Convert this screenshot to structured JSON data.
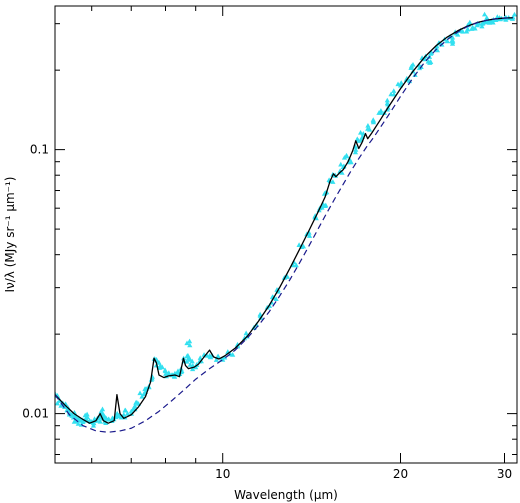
{
  "chart_data": {
    "type": "scatter",
    "title": "",
    "xlabel": "Wavelength (μm)",
    "ylabel": "Iν/λ (MJy sr⁻¹ μm⁻¹)",
    "x_scale": "log",
    "y_scale": "log",
    "xlim": [
      5.2,
      31.5
    ],
    "ylim": [
      0.0065,
      0.35
    ],
    "x_ticks": [
      10,
      20,
      30
    ],
    "y_ticks": [
      0.01,
      0.1
    ],
    "grid": false,
    "legend": "none",
    "colors": {
      "data_points": "#33e0f0",
      "model_curve": "#000000",
      "continuum_curve": "#1a1a8c"
    },
    "series": [
      {
        "kind": "scatter",
        "style": "cyan-triangles",
        "points": [
          [
            5.25,
            0.0117
          ],
          [
            5.3,
            0.0112
          ],
          [
            5.35,
            0.0109
          ],
          [
            5.4,
            0.0106
          ],
          [
            5.45,
            0.0103
          ],
          [
            5.5,
            0.0101
          ],
          [
            5.55,
            0.0099
          ],
          [
            5.6,
            0.0097
          ],
          [
            5.65,
            0.0096
          ],
          [
            5.7,
            0.0095
          ],
          [
            5.75,
            0.0094
          ],
          [
            5.8,
            0.0093
          ],
          [
            5.85,
            0.0095
          ],
          [
            5.9,
            0.0097
          ],
          [
            5.95,
            0.0094
          ],
          [
            6.0,
            0.0093
          ],
          [
            6.05,
            0.0092
          ],
          [
            6.1,
            0.0094
          ],
          [
            6.15,
            0.0096
          ],
          [
            6.2,
            0.0098
          ],
          [
            6.25,
            0.0101
          ],
          [
            6.3,
            0.0098
          ],
          [
            6.35,
            0.0096
          ],
          [
            6.4,
            0.0095
          ],
          [
            6.5,
            0.0096
          ],
          [
            6.6,
            0.0097
          ],
          [
            6.7,
            0.0098
          ],
          [
            6.8,
            0.0099
          ],
          [
            6.9,
            0.01
          ],
          [
            7.0,
            0.0102
          ],
          [
            7.1,
            0.0104
          ],
          [
            7.2,
            0.0109
          ],
          [
            7.3,
            0.0116
          ],
          [
            7.4,
            0.0121
          ],
          [
            7.5,
            0.0126
          ],
          [
            7.6,
            0.0138
          ],
          [
            7.7,
            0.016
          ],
          [
            7.8,
            0.0156
          ],
          [
            7.9,
            0.015
          ],
          [
            8.0,
            0.0145
          ],
          [
            8.1,
            0.0142
          ],
          [
            8.2,
            0.014
          ],
          [
            8.3,
            0.0142
          ],
          [
            8.4,
            0.0145
          ],
          [
            8.5,
            0.0148
          ],
          [
            8.6,
            0.0158
          ],
          [
            8.7,
            0.0165
          ],
          [
            8.8,
            0.016
          ],
          [
            8.9,
            0.0152
          ],
          [
            9.0,
            0.015
          ],
          [
            9.2,
            0.0158
          ],
          [
            9.4,
            0.0166
          ],
          [
            9.6,
            0.0166
          ],
          [
            9.8,
            0.0164
          ],
          [
            10.0,
            0.016
          ],
          [
            10.3,
            0.0168
          ],
          [
            10.6,
            0.018
          ],
          [
            11.0,
            0.0196
          ],
          [
            11.3,
            0.0212
          ],
          [
            11.6,
            0.0231
          ],
          [
            12.0,
            0.0256
          ],
          [
            12.4,
            0.029
          ],
          [
            12.8,
            0.033
          ],
          [
            13.2,
            0.0375
          ],
          [
            13.6,
            0.0428
          ],
          [
            14.0,
            0.0485
          ],
          [
            14.4,
            0.055
          ],
          [
            14.8,
            0.062
          ],
          [
            15.0,
            0.069
          ],
          [
            15.2,
            0.076
          ],
          [
            15.5,
            0.08
          ],
          [
            15.8,
            0.083
          ],
          [
            16.0,
            0.086
          ],
          [
            16.4,
            0.092
          ],
          [
            16.8,
            0.1
          ],
          [
            17.0,
            0.108
          ],
          [
            17.3,
            0.115
          ],
          [
            17.6,
            0.12
          ],
          [
            18.0,
            0.127
          ],
          [
            18.5,
            0.138
          ],
          [
            19.0,
            0.15
          ],
          [
            19.5,
            0.162
          ],
          [
            20.0,
            0.175
          ],
          [
            20.5,
            0.186
          ],
          [
            21.0,
            0.198
          ],
          [
            21.5,
            0.209
          ],
          [
            22.0,
            0.22
          ],
          [
            22.5,
            0.231
          ],
          [
            23.0,
            0.241
          ],
          [
            23.5,
            0.25
          ],
          [
            24.0,
            0.258
          ],
          [
            24.5,
            0.266
          ],
          [
            25.0,
            0.273
          ],
          [
            25.5,
            0.28
          ],
          [
            26.0,
            0.286
          ],
          [
            26.5,
            0.291
          ],
          [
            27.0,
            0.296
          ],
          [
            27.5,
            0.3
          ],
          [
            28.0,
            0.304
          ],
          [
            28.5,
            0.307
          ],
          [
            29.0,
            0.31
          ],
          [
            29.5,
            0.312
          ],
          [
            30.0,
            0.314
          ],
          [
            30.5,
            0.316
          ],
          [
            31.0,
            0.317
          ],
          [
            8.7,
            0.0185
          ],
          [
            12.2,
            0.0275
          ],
          [
            14.6,
            0.06
          ],
          [
            16.2,
            0.095
          ],
          [
            22.5,
            0.215
          ],
          [
            24.5,
            0.252
          ],
          [
            19.0,
            0.142
          ],
          [
            21.0,
            0.21
          ],
          [
            26.0,
            0.296
          ],
          [
            28.0,
            0.316
          ]
        ]
      },
      {
        "kind": "line",
        "style": "solid-black",
        "points": [
          [
            5.2,
            0.0118
          ],
          [
            5.4,
            0.0108
          ],
          [
            5.6,
            0.01
          ],
          [
            5.8,
            0.0095
          ],
          [
            5.95,
            0.0092
          ],
          [
            6.1,
            0.0094
          ],
          [
            6.2,
            0.01
          ],
          [
            6.28,
            0.0094
          ],
          [
            6.4,
            0.0092
          ],
          [
            6.55,
            0.0094
          ],
          [
            6.62,
            0.0118
          ],
          [
            6.7,
            0.01
          ],
          [
            6.8,
            0.0096
          ],
          [
            7.0,
            0.0099
          ],
          [
            7.2,
            0.0106
          ],
          [
            7.4,
            0.0116
          ],
          [
            7.55,
            0.0132
          ],
          [
            7.65,
            0.0162
          ],
          [
            7.72,
            0.0156
          ],
          [
            7.8,
            0.014
          ],
          [
            7.95,
            0.0137
          ],
          [
            8.1,
            0.0139
          ],
          [
            8.3,
            0.014
          ],
          [
            8.45,
            0.0138
          ],
          [
            8.58,
            0.0162
          ],
          [
            8.65,
            0.0152
          ],
          [
            8.75,
            0.0148
          ],
          [
            8.95,
            0.015
          ],
          [
            9.1,
            0.0154
          ],
          [
            9.3,
            0.0164
          ],
          [
            9.5,
            0.0174
          ],
          [
            9.65,
            0.0164
          ],
          [
            9.85,
            0.0161
          ],
          [
            10.1,
            0.0166
          ],
          [
            10.5,
            0.0177
          ],
          [
            11.0,
            0.0196
          ],
          [
            11.5,
            0.0224
          ],
          [
            12.0,
            0.0258
          ],
          [
            12.5,
            0.0302
          ],
          [
            13.0,
            0.0356
          ],
          [
            13.5,
            0.042
          ],
          [
            14.0,
            0.0494
          ],
          [
            14.5,
            0.058
          ],
          [
            14.9,
            0.066
          ],
          [
            15.2,
            0.076
          ],
          [
            15.4,
            0.081
          ],
          [
            15.55,
            0.079
          ],
          [
            15.8,
            0.082
          ],
          [
            16.0,
            0.084
          ],
          [
            16.3,
            0.09
          ],
          [
            16.6,
            0.099
          ],
          [
            16.8,
            0.108
          ],
          [
            17.0,
            0.101
          ],
          [
            17.2,
            0.106
          ],
          [
            17.45,
            0.115
          ],
          [
            17.6,
            0.11
          ],
          [
            17.9,
            0.116
          ],
          [
            18.5,
            0.13
          ],
          [
            19.0,
            0.143
          ],
          [
            20.0,
            0.17
          ],
          [
            21.0,
            0.198
          ],
          [
            22.0,
            0.225
          ],
          [
            23.0,
            0.248
          ],
          [
            24.0,
            0.267
          ],
          [
            25.0,
            0.282
          ],
          [
            26.0,
            0.294
          ],
          [
            27.0,
            0.303
          ],
          [
            28.0,
            0.309
          ],
          [
            29.0,
            0.313
          ],
          [
            30.0,
            0.315
          ],
          [
            31.0,
            0.316
          ]
        ]
      },
      {
        "kind": "line",
        "style": "dashed-navy",
        "points": [
          [
            5.2,
            0.0118
          ],
          [
            5.5,
            0.0099
          ],
          [
            5.8,
            0.009
          ],
          [
            6.1,
            0.0086
          ],
          [
            6.4,
            0.0085
          ],
          [
            6.7,
            0.0086
          ],
          [
            7.0,
            0.0088
          ],
          [
            7.4,
            0.0094
          ],
          [
            7.8,
            0.0102
          ],
          [
            8.2,
            0.0112
          ],
          [
            8.6,
            0.0123
          ],
          [
            9.0,
            0.0135
          ],
          [
            9.5,
            0.0148
          ],
          [
            10.0,
            0.016
          ],
          [
            10.5,
            0.0174
          ],
          [
            11.0,
            0.0193
          ],
          [
            11.5,
            0.0216
          ],
          [
            12.0,
            0.0244
          ],
          [
            12.5,
            0.028
          ],
          [
            13.0,
            0.0322
          ],
          [
            13.5,
            0.0373
          ],
          [
            14.0,
            0.0432
          ],
          [
            14.5,
            0.05
          ],
          [
            15.0,
            0.0575
          ],
          [
            15.5,
            0.0655
          ],
          [
            16.0,
            0.074
          ],
          [
            16.5,
            0.0832
          ],
          [
            17.0,
            0.0925
          ],
          [
            17.5,
            0.102
          ],
          [
            18.0,
            0.111
          ],
          [
            19.0,
            0.133
          ],
          [
            20.0,
            0.159
          ],
          [
            21.0,
            0.187
          ],
          [
            22.0,
            0.215
          ],
          [
            23.0,
            0.24
          ],
          [
            24.0,
            0.261
          ],
          [
            25.0,
            0.279
          ],
          [
            26.0,
            0.293
          ],
          [
            27.0,
            0.303
          ],
          [
            28.0,
            0.309
          ],
          [
            29.0,
            0.313
          ],
          [
            30.0,
            0.315
          ],
          [
            31.0,
            0.316
          ]
        ]
      }
    ]
  }
}
